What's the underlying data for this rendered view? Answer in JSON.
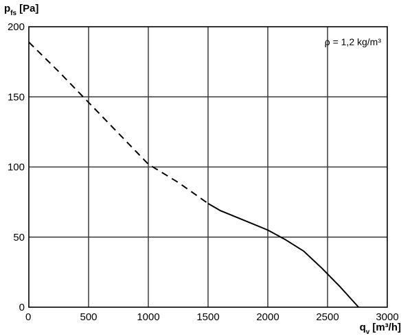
{
  "chart_data": {
    "type": "line",
    "y_axis_label": {
      "main": "p",
      "sub": "fs",
      "unit": "[Pa]"
    },
    "x_axis_label": {
      "main": "q",
      "sub": "v",
      "unit": "[m³/h]"
    },
    "annotation": "ρ = 1,2 kg/m³",
    "xlim": [
      0,
      3000
    ],
    "ylim": [
      0,
      200
    ],
    "x_ticks": [
      0,
      500,
      1000,
      1500,
      2000,
      2500,
      3000
    ],
    "y_ticks": [
      0,
      50,
      100,
      150,
      200
    ],
    "grid": true,
    "series": [
      {
        "style": "dashed",
        "x": [
          0,
          250,
          500,
          750,
          1000,
          1250,
          1500
        ],
        "y": [
          189,
          168,
          146,
          124,
          102,
          89,
          74
        ]
      },
      {
        "style": "solid",
        "x": [
          1500,
          1600,
          1800,
          2000,
          2150,
          2300,
          2450,
          2600,
          2760
        ],
        "y": [
          74,
          69,
          62,
          55,
          48,
          40,
          28,
          15,
          0
        ]
      }
    ]
  }
}
